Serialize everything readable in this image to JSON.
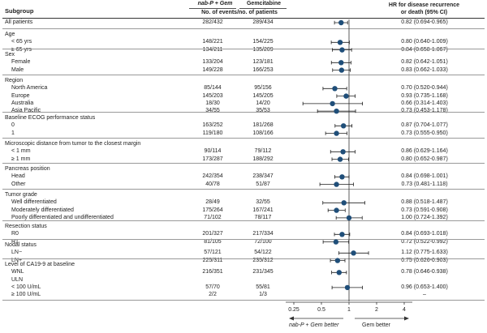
{
  "chart_data": {
    "type": "forest",
    "header": {
      "subgroup": "Subgroup",
      "arm1_drug": "nab-P + Gem",
      "arm2_drug": "Gemcitabine",
      "events_label": "No. of events/no. of patients",
      "hr_label_line1": "HR for disease recurrence",
      "hr_label_line2": "or death (95% CI)"
    },
    "sections": [
      {
        "label": "",
        "rows": [
          {
            "label": "All patients",
            "arm1": "282/432",
            "arm2": "289/434",
            "hr": 0.82,
            "lo": 0.694,
            "hi": 0.965,
            "hr_text": "0.82 (0.694-0.965)"
          }
        ]
      },
      {
        "label": "Age",
        "rows": [
          {
            "label": "< 65 yrs",
            "arm1": "148/221",
            "arm2": "154/225",
            "hr": 0.8,
            "lo": 0.64,
            "hi": 1.009,
            "hr_text": "0.80 (0.640-1.009)"
          },
          {
            "label": "≥ 65 yrs",
            "arm1": "134/211",
            "arm2": "135/209",
            "hr": 0.84,
            "lo": 0.658,
            "hi": 1.067,
            "hr_text": "0.84 (0.658-1.067)"
          }
        ]
      },
      {
        "label": "Sex",
        "rows": [
          {
            "label": "Female",
            "arm1": "133/204",
            "arm2": "123/181",
            "hr": 0.82,
            "lo": 0.642,
            "hi": 1.051,
            "hr_text": "0.82 (0.642-1.051)"
          },
          {
            "label": "Male",
            "arm1": "149/228",
            "arm2": "166/253",
            "hr": 0.83,
            "lo": 0.662,
            "hi": 1.033,
            "hr_text": "0.83 (0.662-1.033)"
          }
        ]
      },
      {
        "label": "Region",
        "rows": [
          {
            "label": "North America",
            "arm1": "85/144",
            "arm2": "95/156",
            "hr": 0.7,
            "lo": 0.52,
            "hi": 0.944,
            "hr_text": "0.70 (0.520-0.944)"
          },
          {
            "label": "Europe",
            "arm1": "145/203",
            "arm2": "145/205",
            "hr": 0.93,
            "lo": 0.735,
            "hi": 1.168,
            "hr_text": "0.93 (0.735-1.168)"
          },
          {
            "label": "Australia",
            "arm1": "18/30",
            "arm2": "14/20",
            "hr": 0.66,
            "lo": 0.314,
            "hi": 1.403,
            "hr_text": "0.66 (0.314-1.403)"
          },
          {
            "label": "Asia Pacific",
            "arm1": "34/55",
            "arm2": "35/53",
            "hr": 0.73,
            "lo": 0.453,
            "hi": 1.178,
            "hr_text": "0.73 (0.453-1.178)"
          }
        ]
      },
      {
        "label": "Baseline ECOG performance status",
        "rows": [
          {
            "label": "0",
            "arm1": "163/252",
            "arm2": "181/268",
            "hr": 0.87,
            "lo": 0.704,
            "hi": 1.077,
            "hr_text": "0.87 (0.704-1.077)"
          },
          {
            "label": "1",
            "arm1": "119/180",
            "arm2": "108/166",
            "hr": 0.73,
            "lo": 0.555,
            "hi": 0.95,
            "hr_text": "0.73 (0.555-0.950)"
          }
        ]
      },
      {
        "label": "Microscopic distance from tumor to the closest margin",
        "rows": [
          {
            "label": "< 1 mm",
            "arm1": "90/114",
            "arm2": "79/112",
            "hr": 0.86,
            "lo": 0.629,
            "hi": 1.164,
            "hr_text": "0.86 (0.629-1.164)"
          },
          {
            "label": "≥ 1 mm",
            "arm1": "173/287",
            "arm2": "188/292",
            "hr": 0.8,
            "lo": 0.652,
            "hi": 0.987,
            "hr_text": "0.80 (0.652-0.987)"
          }
        ]
      },
      {
        "label": "Pancreas position",
        "rows": [
          {
            "label": "Head",
            "arm1": "242/354",
            "arm2": "238/347",
            "hr": 0.84,
            "lo": 0.698,
            "hi": 1.001,
            "hr_text": "0.84 (0.698-1.001)"
          },
          {
            "label": "Other",
            "arm1": "40/78",
            "arm2": "51/87",
            "hr": 0.73,
            "lo": 0.481,
            "hi": 1.118,
            "hr_text": "0.73 (0.481-1.118)"
          }
        ]
      },
      {
        "label": "Tumor grade",
        "rows": [
          {
            "label": "Well differentiated",
            "arm1": "28/49",
            "arm2": "32/55",
            "hr": 0.88,
            "lo": 0.518,
            "hi": 1.487,
            "hr_text": "0.88 (0.518-1.487)"
          },
          {
            "label": "Moderately differentiated",
            "arm1": "175/264",
            "arm2": "167/241",
            "hr": 0.73,
            "lo": 0.591,
            "hi": 0.908,
            "hr_text": "0.73 (0.591-0.908)"
          },
          {
            "label": "Poorly differentiated and undifferentiated",
            "arm1": "71/102",
            "arm2": "78/117",
            "hr": 1.0,
            "lo": 0.724,
            "hi": 1.392,
            "hr_text": "1.00 (0.724-1.392)"
          }
        ]
      },
      {
        "label": "Resection status",
        "rows": [
          {
            "label": "R0",
            "arm1": "201/327",
            "arm2": "217/334",
            "hr": 0.84,
            "lo": 0.693,
            "hi": 1.018,
            "hr_text": "0.84 (0.693-1.018)"
          },
          {
            "label": "R1",
            "arm1": "81/105",
            "arm2": "72/100",
            "hr": 0.72,
            "lo": 0.522,
            "hi": 0.992,
            "hr_text": "0.72 (0.522-0.992)"
          }
        ]
      },
      {
        "label": "Nodal status",
        "rows": [
          {
            "label": "LN−",
            "arm1": "57/121",
            "arm2": "54/122",
            "hr": 1.12,
            "lo": 0.775,
            "hi": 1.633,
            "hr_text": "1.12 (0.775-1.633)"
          },
          {
            "label": "LN+",
            "arm1": "225/311",
            "arm2": "235/312",
            "hr": 0.75,
            "lo": 0.626,
            "hi": 0.903,
            "hr_text": "0.75 (0.626-0.903)"
          }
        ]
      },
      {
        "label": "Level of CA19-9 at baseline",
        "rows": [
          {
            "label": "WNL",
            "arm1": "216/351",
            "arm2": "231/345",
            "hr": 0.78,
            "lo": 0.646,
            "hi": 0.938,
            "hr_text": "0.78 (0.646-0.938)"
          },
          {
            "label": "ULN",
            "arm1": "",
            "arm2": "",
            "hr": null,
            "lo": null,
            "hi": null,
            "hr_text": ""
          },
          {
            "label": "< 100 U/mL",
            "arm1": "57/70",
            "arm2": "55/81",
            "hr": 0.96,
            "lo": 0.653,
            "hi": 1.4,
            "hr_text": "0.96 (0.653-1.400)"
          },
          {
            "label": "≥ 100 U/mL",
            "arm1": "2/2",
            "arm2": "1/3",
            "hr": null,
            "lo": null,
            "hi": null,
            "hr_text": "–"
          }
        ]
      }
    ],
    "x_axis": {
      "scale": "log",
      "ticks": [
        0.25,
        0.5,
        1,
        2,
        4
      ],
      "tick_labels": [
        "0.25",
        "0.5",
        "1",
        "2",
        "4"
      ],
      "reference_line": 1,
      "favors_left": "nab-P + Gem better",
      "favors_right": "Gem better"
    },
    "marker_color": "#1f4e79"
  }
}
